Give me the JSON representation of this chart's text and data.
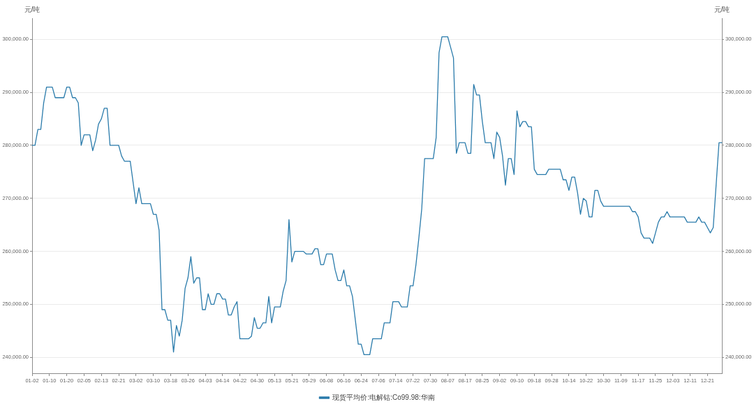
{
  "chart_data": {
    "type": "line",
    "ylabel": "元/吨",
    "y2label": "元/吨",
    "categories": [
      "01-02",
      null,
      null,
      null,
      null,
      null,
      "01-10",
      null,
      null,
      null,
      null,
      null,
      "01-20",
      null,
      null,
      null,
      null,
      null,
      "02-05",
      null,
      null,
      null,
      null,
      null,
      "02-13",
      null,
      null,
      null,
      null,
      null,
      "02-21",
      null,
      null,
      null,
      null,
      null,
      "03-02",
      null,
      null,
      null,
      null,
      null,
      "03-10",
      null,
      null,
      null,
      null,
      null,
      "03-18",
      null,
      null,
      null,
      null,
      null,
      "03-26",
      null,
      null,
      null,
      null,
      null,
      "04-03",
      null,
      null,
      null,
      null,
      null,
      "04-14",
      null,
      null,
      null,
      null,
      null,
      "04-22",
      null,
      null,
      null,
      null,
      null,
      "04-30",
      null,
      null,
      null,
      null,
      null,
      "05-13",
      null,
      null,
      null,
      null,
      null,
      "05-21",
      null,
      null,
      null,
      null,
      null,
      "05-29",
      null,
      null,
      null,
      null,
      null,
      "06-08",
      null,
      null,
      null,
      null,
      null,
      "06-16",
      null,
      null,
      null,
      null,
      null,
      "06-24",
      null,
      null,
      null,
      null,
      null,
      "07-06",
      null,
      null,
      null,
      null,
      null,
      "07-14",
      null,
      null,
      null,
      null,
      null,
      "07-22",
      null,
      null,
      null,
      null,
      null,
      "07-30",
      null,
      null,
      null,
      null,
      null,
      "08-07",
      null,
      null,
      null,
      null,
      null,
      "08-17",
      null,
      null,
      null,
      null,
      null,
      "08-25",
      null,
      null,
      null,
      null,
      null,
      "09-02",
      null,
      null,
      null,
      null,
      null,
      "09-10",
      null,
      null,
      null,
      null,
      null,
      "09-18",
      null,
      null,
      null,
      null,
      null,
      "09-28",
      null,
      null,
      null,
      null,
      null,
      "10-14",
      null,
      null,
      null,
      null,
      null,
      "10-22",
      null,
      null,
      null,
      null,
      null,
      "10-30",
      null,
      null,
      null,
      null,
      null,
      "11-09",
      null,
      null,
      null,
      null,
      null,
      "11-17",
      null,
      null,
      null,
      null,
      null,
      "11-25",
      null,
      null,
      null,
      null,
      null,
      "12-03",
      null,
      null,
      null,
      null,
      null,
      "12-11",
      null,
      null,
      null,
      null,
      null,
      "12-21",
      null,
      null,
      null,
      null,
      null
    ],
    "series": [
      {
        "name": "现货平均价:电解钴:Co99.98:华南",
        "color": "#2a7bab",
        "values": [
          280000,
          280000,
          283000,
          283000,
          288000,
          291000,
          291000,
          291000,
          289000,
          289000,
          289000,
          289000,
          291000,
          291000,
          289000,
          289000,
          288000,
          280000,
          282000,
          282000,
          282000,
          279000,
          281000,
          284000,
          285000,
          287000,
          287000,
          280000,
          280000,
          280000,
          280000,
          278000,
          277000,
          277000,
          277000,
          273000,
          269000,
          272000,
          269000,
          269000,
          269000,
          269000,
          267000,
          267000,
          264000,
          249000,
          249000,
          247000,
          247000,
          241000,
          246000,
          244000,
          247000,
          253000,
          255000,
          259000,
          254000,
          255000,
          255000,
          249000,
          249000,
          252000,
          250000,
          250000,
          252000,
          252000,
          251000,
          251000,
          248000,
          248000,
          249500,
          250500,
          243500,
          243500,
          243500,
          243500,
          244000,
          247500,
          245500,
          245500,
          246500,
          246500,
          251500,
          246500,
          249500,
          249500,
          249500,
          252500,
          254500,
          266000,
          258000,
          260000,
          260000,
          260000,
          260000,
          259500,
          259500,
          259500,
          260500,
          260500,
          257500,
          257500,
          259500,
          259500,
          259500,
          256500,
          254500,
          254500,
          256500,
          253500,
          253500,
          251500,
          247000,
          242500,
          242500,
          240500,
          240500,
          240500,
          243500,
          243500,
          243500,
          243500,
          246500,
          246500,
          246500,
          250500,
          250500,
          250500,
          249500,
          249500,
          249500,
          253500,
          253500,
          257500,
          262500,
          268000,
          277500,
          277500,
          277500,
          277500,
          281500,
          297500,
          300500,
          300500,
          300500,
          298500,
          296500,
          278500,
          280500,
          280500,
          280500,
          278500,
          278500,
          291500,
          289500,
          289500,
          284500,
          280500,
          280500,
          280500,
          277500,
          282500,
          281500,
          278000,
          272500,
          277500,
          277500,
          274500,
          286500,
          283500,
          284500,
          284500,
          283500,
          283500,
          275500,
          274500,
          274500,
          274500,
          274500,
          275500,
          275500,
          275500,
          275500,
          275500,
          273500,
          273500,
          271500,
          274000,
          274000,
          271000,
          267000,
          270000,
          269500,
          266500,
          266500,
          271500,
          271500,
          269500,
          268500,
          268500,
          268500,
          268500,
          268500,
          268500,
          268500,
          268500,
          268500,
          268500,
          267500,
          267500,
          266500,
          263500,
          262500,
          262500,
          262500,
          261500,
          263500,
          265500,
          266500,
          266500,
          267500,
          266500,
          266500,
          266500,
          266500,
          266500,
          266500,
          265500,
          265500,
          265500,
          265500,
          266500,
          265500,
          265500,
          264500,
          263500,
          264500,
          272500,
          280500,
          280500
        ]
      }
    ],
    "ylim": [
      237000,
      304000
    ],
    "yticks": [
      {
        "value": 240000,
        "label": "240,000.00"
      },
      {
        "value": 250000,
        "label": "250,000.00"
      },
      {
        "value": 260000,
        "label": "260,000.00"
      },
      {
        "value": 270000,
        "label": "270,000.00"
      },
      {
        "value": 280000,
        "label": "280,000.00"
      },
      {
        "value": 290000,
        "label": "290,000.00"
      },
      {
        "value": 300000,
        "label": "300,000.00"
      }
    ],
    "y2lim": [
      237000,
      304000
    ],
    "y2ticks": [
      {
        "value": 240000,
        "label": "240,000.00"
      },
      {
        "value": 250000,
        "label": "250,000.00"
      },
      {
        "value": 260000,
        "label": "260,000.00"
      },
      {
        "value": 270000,
        "label": "270,000.00"
      },
      {
        "value": 280000,
        "label": "280,000.00"
      },
      {
        "value": 290000,
        "label": "290,000.00"
      },
      {
        "value": 300000,
        "label": "300,000.00"
      }
    ],
    "grid": "y",
    "legend": "bottom",
    "marker": "none"
  }
}
